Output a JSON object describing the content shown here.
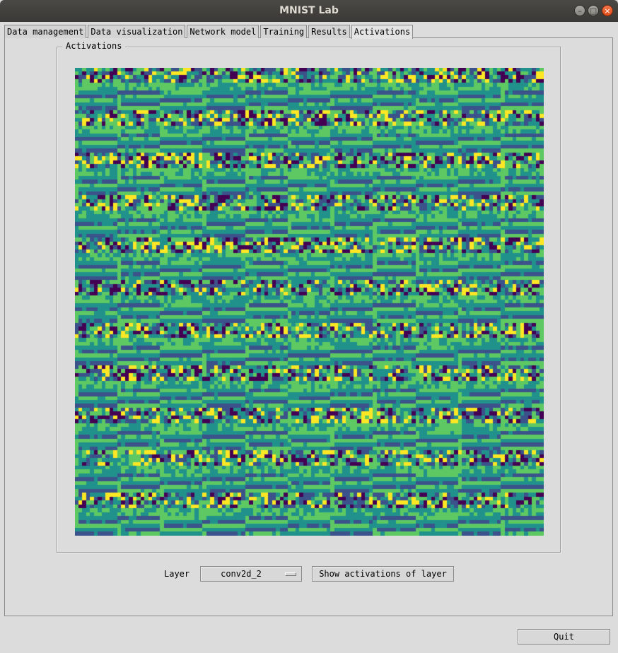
{
  "window": {
    "title": "MNIST Lab",
    "controls": {
      "minimize": "–",
      "maximize": "□",
      "close": "×"
    }
  },
  "tabs": [
    {
      "label": "Data management"
    },
    {
      "label": "Data visualization"
    },
    {
      "label": "Network model"
    },
    {
      "label": "Training"
    },
    {
      "label": "Results"
    },
    {
      "label": "Activations",
      "active": true
    }
  ],
  "activations": {
    "frame_label": "Activations",
    "grid": {
      "cols": 11,
      "rows": 11,
      "cell_resolution": 11
    },
    "colormap": [
      "#440154",
      "#3b528b",
      "#21918c",
      "#5ec962",
      "#fde725"
    ]
  },
  "controls": {
    "layer_label": "Layer",
    "layer_value": "conv2d_2",
    "show_button": "Show activations of layer",
    "quit_button": "Quit"
  }
}
